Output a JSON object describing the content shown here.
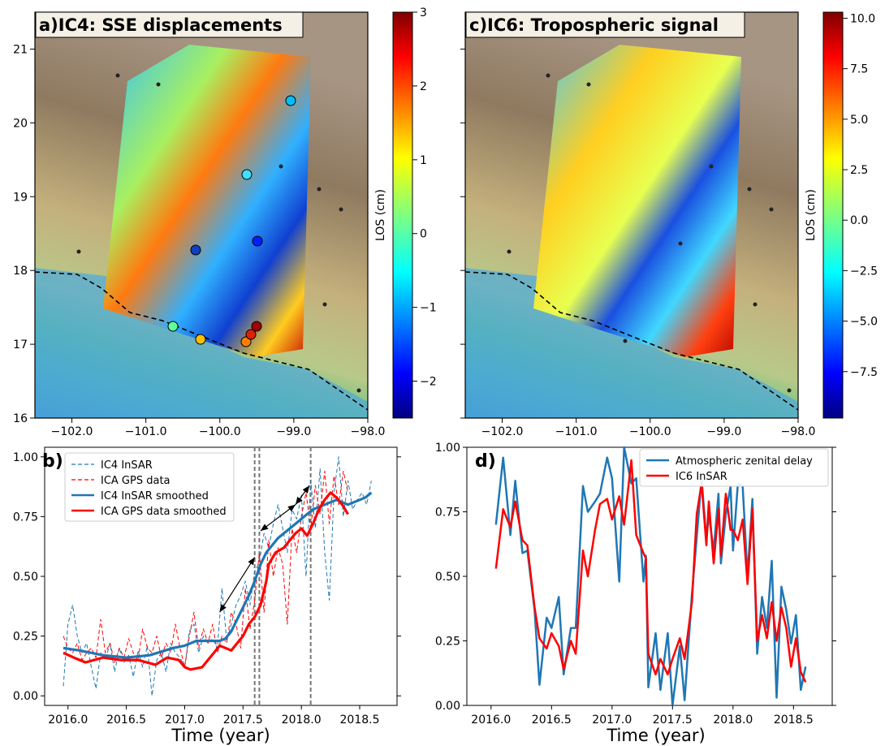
{
  "panels": {
    "a": {
      "title": "a)IC4: SSE displacements",
      "xticks": [
        "−102.0",
        "−101.0",
        "−100.0",
        "−99.0",
        "−98.0"
      ],
      "yticks": [
        "16",
        "17",
        "18",
        "19",
        "20",
        "21"
      ],
      "colorbar": {
        "label": "LOS (cm)",
        "ticks": [
          "−2",
          "−1",
          "0",
          "1",
          "2",
          "3"
        ],
        "range": [
          -2.5,
          3
        ],
        "colormap": "jet"
      }
    },
    "c": {
      "title": "c)IC6: Tropospheric signal",
      "xticks": [
        "−102.0",
        "−101.0",
        "−100.0",
        "−99.0",
        "−98.0"
      ],
      "colorbar": {
        "label": "LOS (cm)",
        "ticks": [
          "−7.5",
          "−5.0",
          "−2.5",
          "0.0",
          "2.5",
          "5.0",
          "7.5",
          "10.0"
        ],
        "range": [
          -9.8,
          10.3
        ],
        "colormap": "jet"
      }
    },
    "b": {
      "label": "b)",
      "xlabel": "Time (year)"
    },
    "d": {
      "label": "d)",
      "xlabel": "Time (year)"
    }
  },
  "chart_data": [
    {
      "type": "line",
      "panel": "b",
      "xlabel": "Time (year)",
      "ylabel": "",
      "xlim": [
        2015.8,
        2018.82
      ],
      "ylim": [
        -0.04,
        1.04
      ],
      "xticks": [
        "2016.0",
        "2016.5",
        "2017.0",
        "2017.5",
        "2018.0",
        "2018.5"
      ],
      "yticks": [
        "0.00",
        "0.25",
        "0.50",
        "0.75",
        "1.00"
      ],
      "legend_position": "top-center",
      "series": [
        {
          "name": "IC4 InSAR",
          "color": "#1f77b4",
          "style": "dashed",
          "width": 1,
          "x": [
            2015.96,
            2016.0,
            2016.04,
            2016.08,
            2016.12,
            2016.16,
            2016.2,
            2016.24,
            2016.28,
            2016.32,
            2016.36,
            2016.4,
            2016.44,
            2016.48,
            2016.52,
            2016.56,
            2016.6,
            2016.64,
            2016.68,
            2016.72,
            2016.76,
            2016.8,
            2016.84,
            2016.88,
            2016.92,
            2016.96,
            2017.0,
            2017.04,
            2017.08,
            2017.12,
            2017.16,
            2017.2,
            2017.24,
            2017.28,
            2017.32,
            2017.36,
            2017.4,
            2017.44,
            2017.48,
            2017.52,
            2017.56,
            2017.6,
            2017.64,
            2017.68,
            2017.72,
            2017.76,
            2017.8,
            2017.84,
            2017.88,
            2017.92,
            2017.96,
            2018.0,
            2018.04,
            2018.08,
            2018.12,
            2018.16,
            2018.2,
            2018.24,
            2018.28,
            2018.32,
            2018.36,
            2018.4,
            2018.44,
            2018.48,
            2018.52,
            2018.56,
            2018.6
          ],
          "y": [
            0.04,
            0.3,
            0.38,
            0.25,
            0.18,
            0.22,
            0.12,
            0.03,
            0.18,
            0.15,
            0.22,
            0.1,
            0.2,
            0.14,
            0.17,
            0.08,
            0.19,
            0.12,
            0.21,
            0.0,
            0.15,
            0.18,
            0.1,
            0.22,
            0.18,
            0.16,
            0.12,
            0.27,
            0.3,
            0.18,
            0.25,
            0.22,
            0.24,
            0.2,
            0.45,
            0.23,
            0.3,
            0.38,
            0.42,
            0.48,
            0.38,
            0.52,
            0.56,
            0.68,
            0.62,
            0.72,
            0.8,
            0.7,
            0.6,
            0.78,
            0.74,
            0.84,
            0.5,
            0.9,
            0.7,
            0.95,
            0.6,
            0.4,
            0.85,
            1.0,
            0.75,
            0.9,
            0.78,
            0.82,
            0.85,
            0.8,
            0.9
          ]
        },
        {
          "name": "ICA GPS data",
          "color": "#ff0000",
          "style": "dashed",
          "width": 1,
          "x": [
            2015.96,
            2016.0,
            2016.04,
            2016.08,
            2016.12,
            2016.16,
            2016.2,
            2016.24,
            2016.28,
            2016.32,
            2016.36,
            2016.4,
            2016.44,
            2016.48,
            2016.52,
            2016.56,
            2016.6,
            2016.64,
            2016.68,
            2016.72,
            2016.76,
            2016.8,
            2016.84,
            2016.88,
            2016.92,
            2016.96,
            2017.0,
            2017.04,
            2017.08,
            2017.12,
            2017.16,
            2017.2,
            2017.24,
            2017.28,
            2017.32,
            2017.36,
            2017.4,
            2017.44,
            2017.48,
            2017.52,
            2017.56,
            2017.6,
            2017.64,
            2017.68,
            2017.72,
            2017.76,
            2017.8,
            2017.84,
            2017.88,
            2017.92,
            2017.96,
            2018.0,
            2018.04,
            2018.08,
            2018.12,
            2018.16,
            2018.2,
            2018.24,
            2018.28,
            2018.32,
            2018.36,
            2018.4
          ],
          "y": [
            0.25,
            0.2,
            0.18,
            0.22,
            0.15,
            0.18,
            0.2,
            0.16,
            0.32,
            0.18,
            0.22,
            0.14,
            0.2,
            0.16,
            0.24,
            0.18,
            0.15,
            0.28,
            0.2,
            0.18,
            0.25,
            0.16,
            0.22,
            0.18,
            0.3,
            0.2,
            0.12,
            0.25,
            0.35,
            0.2,
            0.28,
            0.22,
            0.3,
            0.18,
            0.25,
            0.22,
            0.35,
            0.3,
            0.2,
            0.45,
            0.28,
            0.4,
            0.6,
            0.35,
            0.65,
            0.5,
            0.62,
            0.55,
            0.3,
            0.7,
            0.6,
            0.75,
            0.85,
            0.7,
            0.88,
            0.76,
            0.94,
            0.72,
            0.92,
            0.8,
            0.94,
            0.85
          ]
        },
        {
          "name": "IC4 InSAR smoothed",
          "color": "#1f77b4",
          "style": "solid",
          "width": 3.2,
          "x": [
            2015.96,
            2016.1,
            2016.3,
            2016.5,
            2016.7,
            2016.9,
            2017.0,
            2017.1,
            2017.2,
            2017.3,
            2017.35,
            2017.4,
            2017.45,
            2017.5,
            2017.55,
            2017.6,
            2017.65,
            2017.7,
            2017.75,
            2017.8,
            2017.85,
            2017.9,
            2017.95,
            2018.0,
            2018.05,
            2018.1,
            2018.15,
            2018.2,
            2018.25,
            2018.3,
            2018.35,
            2018.4,
            2018.45,
            2018.5,
            2018.55,
            2018.6
          ],
          "y": [
            0.2,
            0.19,
            0.17,
            0.16,
            0.17,
            0.2,
            0.21,
            0.23,
            0.23,
            0.23,
            0.24,
            0.27,
            0.32,
            0.37,
            0.42,
            0.48,
            0.55,
            0.6,
            0.63,
            0.66,
            0.68,
            0.7,
            0.72,
            0.74,
            0.76,
            0.78,
            0.79,
            0.8,
            0.81,
            0.82,
            0.81,
            0.8,
            0.81,
            0.82,
            0.83,
            0.85
          ]
        },
        {
          "name": "ICA GPS data smoothed",
          "color": "#ff0000",
          "style": "solid",
          "width": 3.2,
          "x": [
            2015.96,
            2016.05,
            2016.15,
            2016.3,
            2016.45,
            2016.6,
            2016.75,
            2016.85,
            2016.95,
            2017.0,
            2017.05,
            2017.15,
            2017.25,
            2017.3,
            2017.35,
            2017.4,
            2017.45,
            2017.5,
            2017.55,
            2017.6,
            2017.65,
            2017.7,
            2017.72,
            2017.78,
            2017.85,
            2017.9,
            2017.95,
            2018.0,
            2018.05,
            2018.1,
            2018.15,
            2018.2,
            2018.25,
            2018.3,
            2018.35,
            2018.4
          ],
          "y": [
            0.18,
            0.16,
            0.14,
            0.16,
            0.15,
            0.15,
            0.13,
            0.16,
            0.15,
            0.12,
            0.11,
            0.12,
            0.18,
            0.21,
            0.2,
            0.19,
            0.22,
            0.25,
            0.3,
            0.33,
            0.38,
            0.48,
            0.55,
            0.6,
            0.62,
            0.65,
            0.68,
            0.7,
            0.67,
            0.72,
            0.78,
            0.82,
            0.85,
            0.83,
            0.8,
            0.76
          ]
        }
      ],
      "vlines": [
        2017.6,
        2017.64,
        2018.08
      ],
      "arrows": [
        {
          "x1": 2017.3,
          "y1": 0.35,
          "x2": 2017.6,
          "y2": 0.58
        },
        {
          "x1": 2017.65,
          "y1": 0.69,
          "x2": 2017.95,
          "y2": 0.8
        },
        {
          "x1": 2017.95,
          "y1": 0.8,
          "x2": 2018.07,
          "y2": 0.88
        }
      ]
    },
    {
      "type": "line",
      "panel": "d",
      "xlabel": "Time (year)",
      "ylabel": "",
      "xlim": [
        2015.8,
        2018.82
      ],
      "ylim": [
        0,
        1.0
      ],
      "xticks": [
        "2016.0",
        "2016.5",
        "2017.0",
        "2017.5",
        "2018.0",
        "2018.5"
      ],
      "yticks": [
        "0.00",
        "0.25",
        "0.50",
        "0.75",
        "1.00"
      ],
      "legend_position": "top-right",
      "series": [
        {
          "name": "Atmospheric zenital delay",
          "color": "#1f77b4",
          "style": "solid",
          "width": 2.5,
          "x": [
            2016.04,
            2016.1,
            2016.16,
            2016.2,
            2016.26,
            2016.3,
            2016.36,
            2016.4,
            2016.46,
            2016.5,
            2016.56,
            2016.6,
            2016.66,
            2016.7,
            2016.76,
            2016.8,
            2016.86,
            2016.9,
            2016.96,
            2017.0,
            2017.06,
            2017.1,
            2017.16,
            2017.2,
            2017.26,
            2017.28,
            2017.3,
            2017.36,
            2017.4,
            2017.46,
            2017.5,
            2017.56,
            2017.6,
            2017.66,
            2017.7,
            2017.74,
            2017.78,
            2017.8,
            2017.84,
            2017.88,
            2017.9,
            2017.94,
            2017.98,
            2018.0,
            2018.04,
            2018.08,
            2018.12,
            2018.16,
            2018.2,
            2018.24,
            2018.28,
            2018.32,
            2018.36,
            2018.4,
            2018.44,
            2018.48,
            2018.52,
            2018.56,
            2018.6
          ],
          "y": [
            0.7,
            0.96,
            0.66,
            0.87,
            0.59,
            0.6,
            0.37,
            0.08,
            0.34,
            0.3,
            0.42,
            0.12,
            0.3,
            0.3,
            0.85,
            0.75,
            0.79,
            0.82,
            0.96,
            0.88,
            0.48,
            1.0,
            0.86,
            0.88,
            0.48,
            0.58,
            0.07,
            0.28,
            0.06,
            0.28,
            0.0,
            0.23,
            0.02,
            0.43,
            0.65,
            0.88,
            0.64,
            0.74,
            0.6,
            0.82,
            0.55,
            0.74,
            0.85,
            0.6,
            0.86,
            0.85,
            0.5,
            0.8,
            0.2,
            0.42,
            0.3,
            0.56,
            0.03,
            0.46,
            0.37,
            0.24,
            0.35,
            0.06,
            0.15
          ]
        },
        {
          "name": "IC6 InSAR",
          "color": "#ff0000",
          "style": "solid",
          "width": 2.5,
          "x": [
            2016.04,
            2016.1,
            2016.16,
            2016.2,
            2016.26,
            2016.3,
            2016.36,
            2016.4,
            2016.46,
            2016.5,
            2016.56,
            2016.6,
            2016.66,
            2016.7,
            2016.76,
            2016.8,
            2016.86,
            2016.9,
            2016.96,
            2017.0,
            2017.06,
            2017.1,
            2017.16,
            2017.2,
            2017.26,
            2017.28,
            2017.3,
            2017.36,
            2017.4,
            2017.46,
            2017.5,
            2017.56,
            2017.6,
            2017.66,
            2017.7,
            2017.74,
            2017.78,
            2017.8,
            2017.84,
            2017.88,
            2017.9,
            2017.94,
            2017.98,
            2018.0,
            2018.04,
            2018.08,
            2018.12,
            2018.16,
            2018.2,
            2018.24,
            2018.28,
            2018.32,
            2018.36,
            2018.4,
            2018.44,
            2018.48,
            2018.52,
            2018.56,
            2018.6
          ],
          "y": [
            0.53,
            0.76,
            0.69,
            0.79,
            0.64,
            0.62,
            0.38,
            0.26,
            0.22,
            0.28,
            0.23,
            0.14,
            0.25,
            0.2,
            0.6,
            0.5,
            0.68,
            0.78,
            0.8,
            0.72,
            0.81,
            0.7,
            0.95,
            0.66,
            0.59,
            0.57,
            0.2,
            0.12,
            0.18,
            0.12,
            0.18,
            0.26,
            0.18,
            0.4,
            0.74,
            0.86,
            0.62,
            0.79,
            0.55,
            0.76,
            0.58,
            0.82,
            0.68,
            0.68,
            0.64,
            0.72,
            0.47,
            0.76,
            0.25,
            0.35,
            0.26,
            0.4,
            0.25,
            0.38,
            0.3,
            0.15,
            0.26,
            0.13,
            0.09
          ]
        }
      ]
    }
  ]
}
